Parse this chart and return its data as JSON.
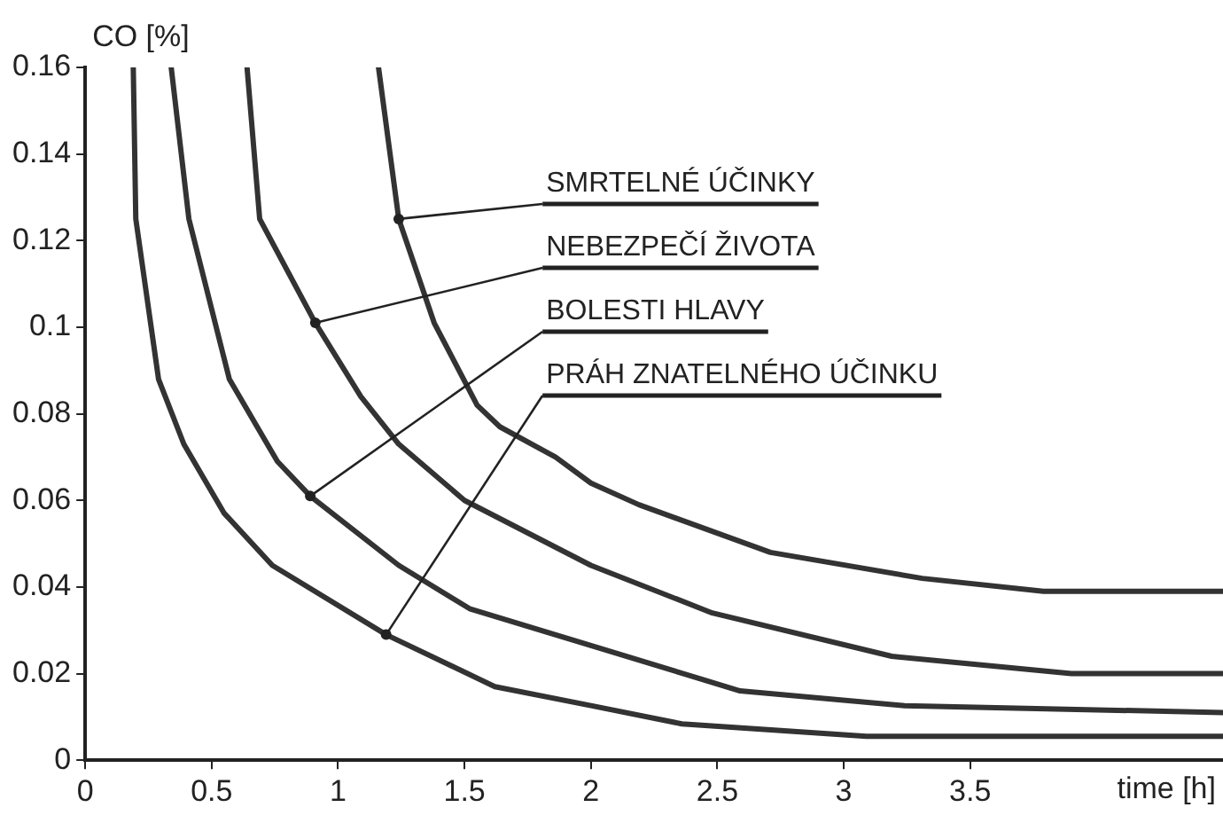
{
  "chart_data": {
    "type": "line",
    "xlabel": "time [h]",
    "ylabel": "CO [%]",
    "xlim": [
      0,
      4.5
    ],
    "xticks": [
      0,
      0.5,
      1,
      1.5,
      2,
      2.5,
      3,
      3.5
    ],
    "ylim": [
      0,
      0.16
    ],
    "yticks": [
      0,
      0.02,
      0.04,
      0.06,
      0.08,
      0.1,
      0.12,
      0.14,
      0.16
    ],
    "marker": "none",
    "line_style": "solid",
    "series": [
      {
        "color": "#333333",
        "x": [
          0.19,
          0.2,
          0.29,
          0.39,
          0.55,
          0.74,
          1.19,
          1.62,
          2.0,
          2.36,
          3.09,
          4.5
        ],
        "values": [
          0.16,
          0.125,
          0.088,
          0.073,
          0.057,
          0.045,
          0.029,
          0.017,
          0.0126,
          0.0084,
          0.0055,
          0.0055
        ]
      },
      {
        "color": "#333333",
        "x": [
          0.34,
          0.41,
          0.57,
          0.76,
          0.89,
          1.24,
          1.52,
          2.0,
          2.59,
          3.24,
          4.5
        ],
        "values": [
          0.16,
          0.125,
          0.088,
          0.069,
          0.061,
          0.045,
          0.035,
          0.0265,
          0.016,
          0.0126,
          0.011
        ]
      },
      {
        "color": "#333333",
        "x": [
          0.64,
          0.69,
          0.91,
          1.09,
          1.24,
          1.5,
          2.0,
          2.48,
          3.19,
          3.9,
          4.5
        ],
        "values": [
          0.16,
          0.125,
          0.101,
          0.084,
          0.073,
          0.06,
          0.045,
          0.034,
          0.024,
          0.02,
          0.02
        ]
      },
      {
        "color": "#333333",
        "x": [
          1.16,
          1.24,
          1.38,
          1.55,
          1.64,
          1.86,
          2.0,
          2.19,
          2.71,
          3.31,
          3.79,
          4.5
        ],
        "values": [
          0.16,
          0.125,
          0.101,
          0.082,
          0.077,
          0.07,
          0.064,
          0.059,
          0.048,
          0.042,
          0.039,
          0.039
        ]
      }
    ],
    "annotations": [
      {
        "text": "SMRTELNÉ ÚČINKY",
        "x": 1.24,
        "y": 0.125
      },
      {
        "text": "NEBEZPEČÍ ŽIVOTA",
        "x": 0.91,
        "y": 0.101
      },
      {
        "text": "BOLESTI HLAVY",
        "x": 0.89,
        "y": 0.061
      },
      {
        "text": "PRÁH ZNATELNÉHO ÚČINKU",
        "x": 1.19,
        "y": 0.029
      }
    ]
  }
}
